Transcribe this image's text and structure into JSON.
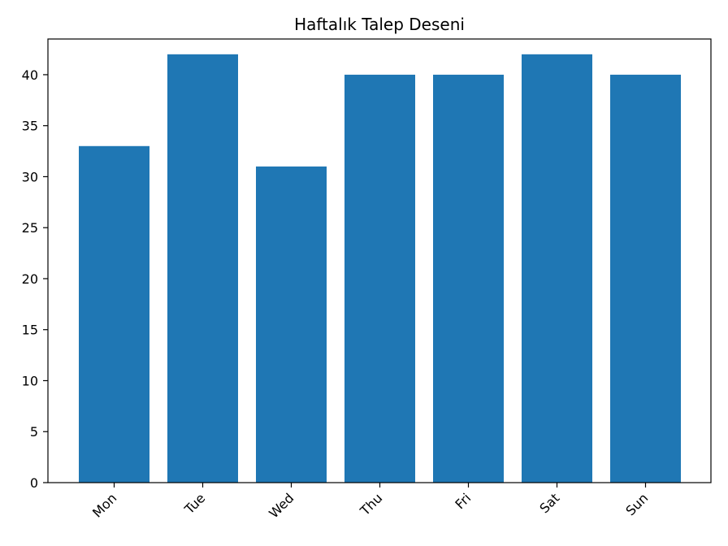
{
  "chart_data": {
    "type": "bar",
    "title": "Haftalık Talep Deseni",
    "xlabel": "",
    "ylabel": "",
    "categories": [
      "Mon",
      "Tue",
      "Wed",
      "Thu",
      "Fri",
      "Sat",
      "Sun"
    ],
    "values": [
      33,
      42,
      31,
      40,
      40,
      42,
      40
    ],
    "ylim": [
      0,
      43.5
    ],
    "yticks": [
      0,
      5,
      10,
      15,
      20,
      25,
      30,
      35,
      40
    ],
    "bar_color": "#1f77b4",
    "grid": false,
    "legend": "none"
  }
}
